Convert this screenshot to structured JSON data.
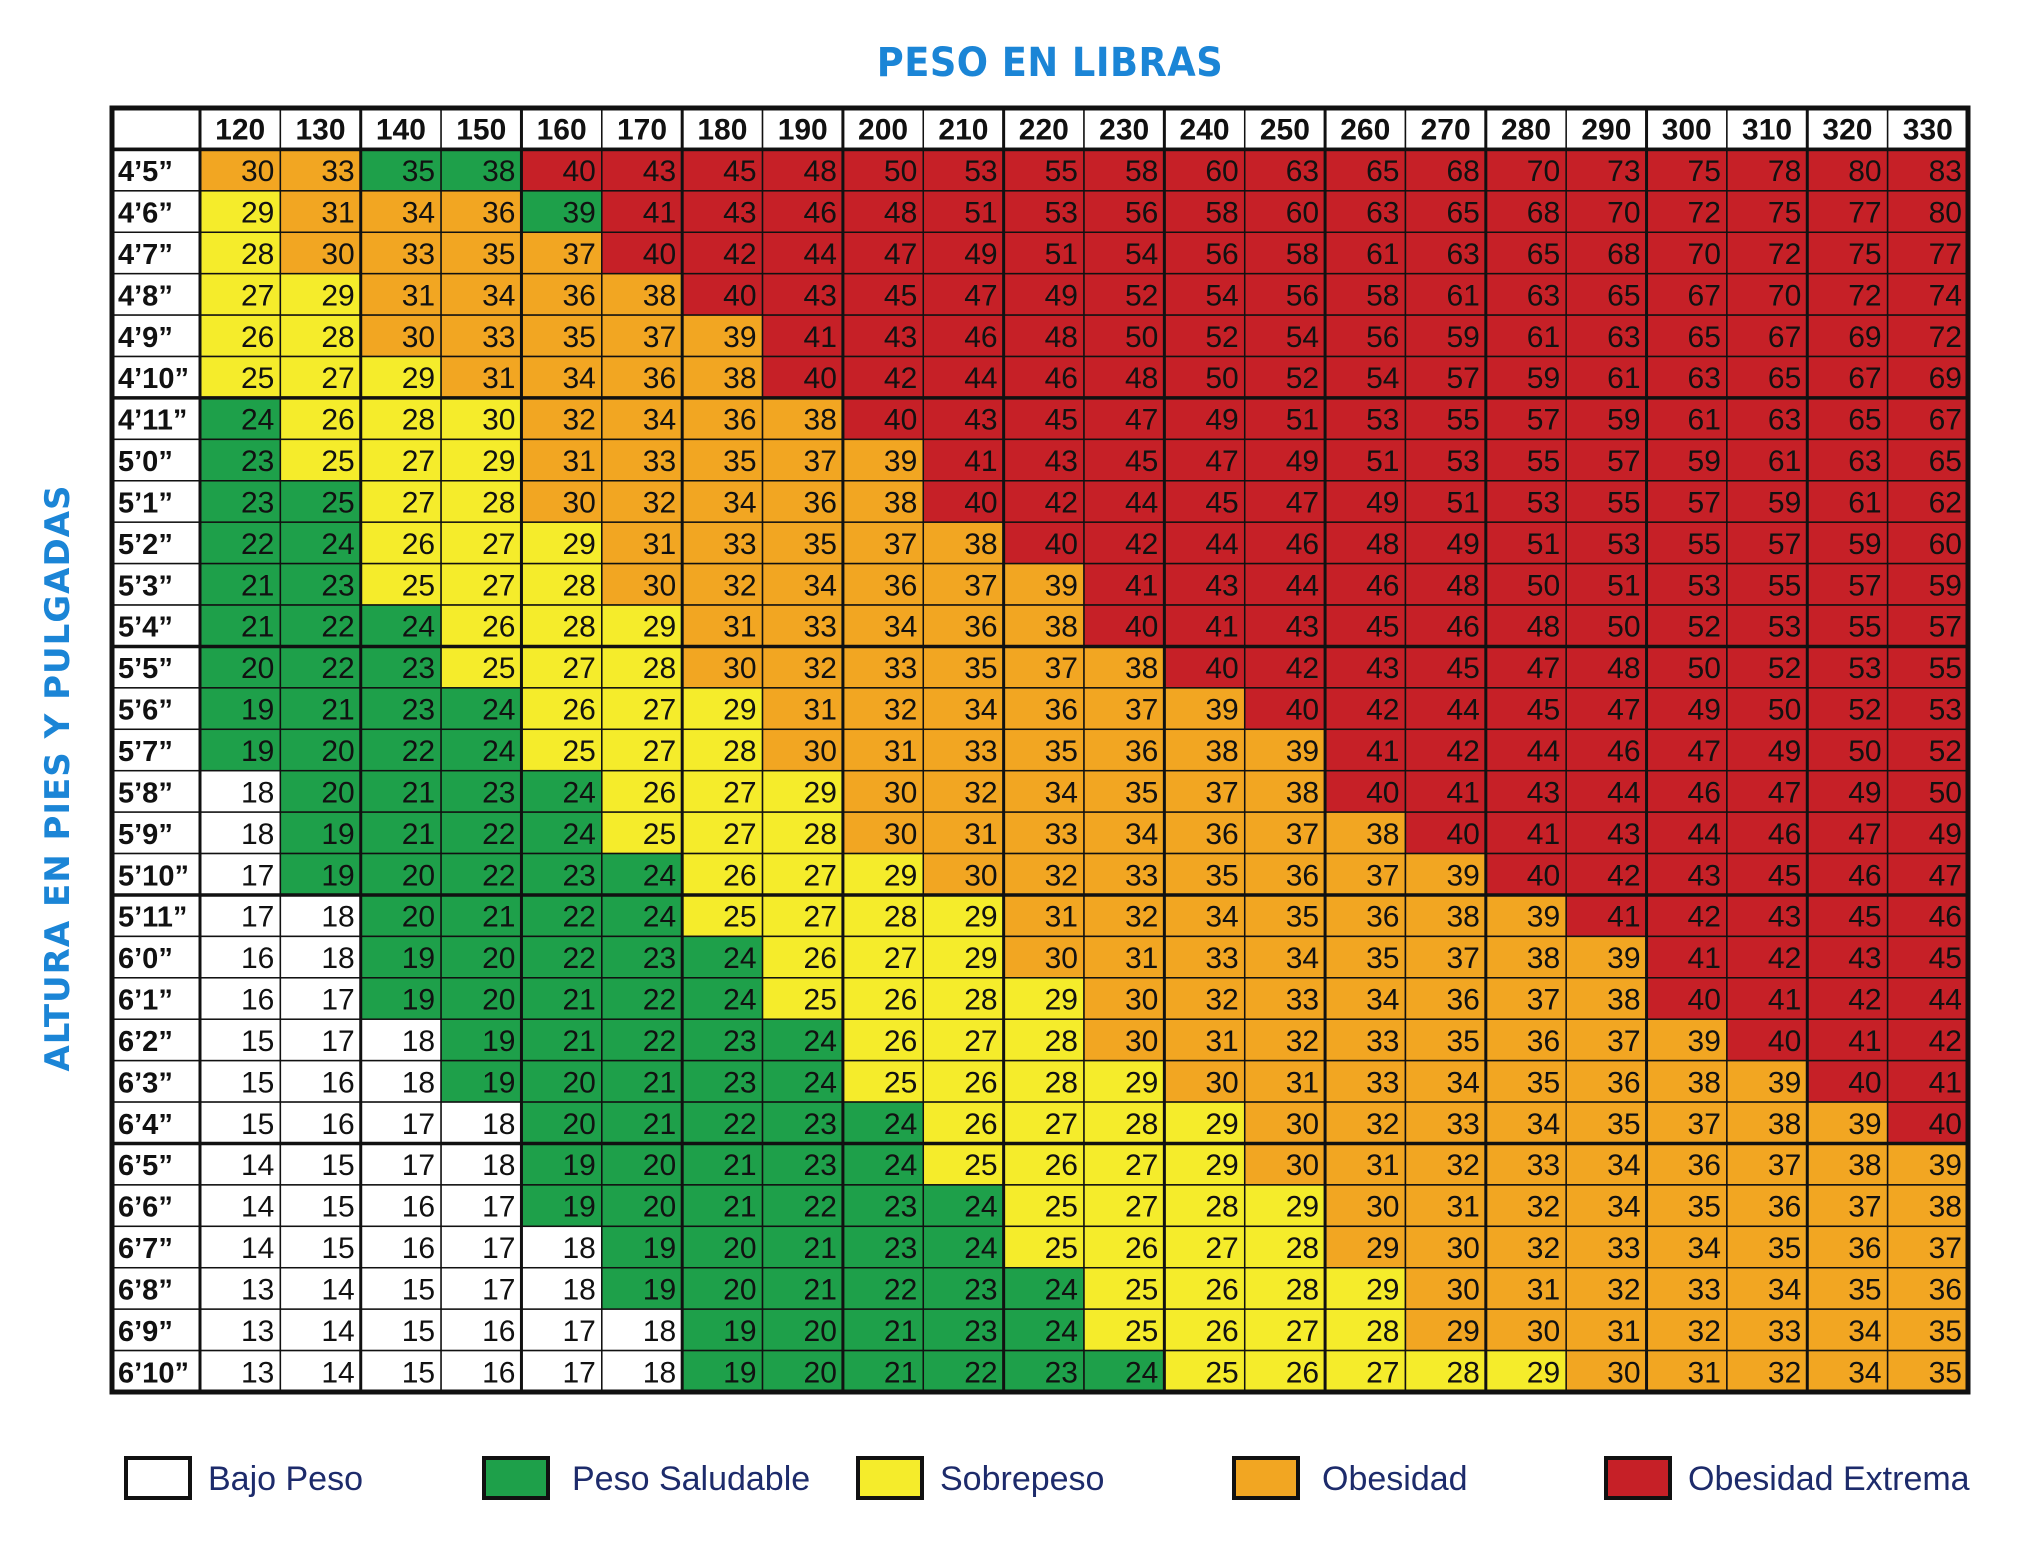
{
  "chart_data": {
    "type": "heatmap",
    "title": "PESO EN LIBRAS",
    "ylabel": "ALTURA EN PIES Y PULGADAS",
    "columns": [
      "120",
      "130",
      "140",
      "150",
      "160",
      "170",
      "180",
      "190",
      "200",
      "210",
      "220",
      "230",
      "240",
      "250",
      "260",
      "270",
      "280",
      "290",
      "300",
      "310",
      "320",
      "330"
    ],
    "rows": [
      "4’5”",
      "4’6”",
      "4’7”",
      "4’8”",
      "4’9”",
      "4’10”",
      "4’11”",
      "5’0”",
      "5’1”",
      "5’2”",
      "5’3”",
      "5’4”",
      "5’5”",
      "5’6”",
      "5’7”",
      "5’8”",
      "5’9”",
      "5’10”",
      "5’11”",
      "6’0”",
      "6’1”",
      "6’2”",
      "6’3”",
      "6’4”",
      "6’5”",
      "6’6”",
      "6’7”",
      "6’8”",
      "6’9”",
      "6’10”"
    ],
    "values": [
      [
        30,
        33,
        35,
        38,
        40,
        43,
        45,
        48,
        50,
        53,
        55,
        58,
        60,
        63,
        65,
        68,
        70,
        73,
        75,
        78,
        80,
        83
      ],
      [
        29,
        31,
        34,
        36,
        39,
        41,
        43,
        46,
        48,
        51,
        53,
        56,
        58,
        60,
        63,
        65,
        68,
        70,
        72,
        75,
        77,
        80
      ],
      [
        28,
        30,
        33,
        35,
        37,
        40,
        42,
        44,
        47,
        49,
        51,
        54,
        56,
        58,
        61,
        63,
        65,
        68,
        70,
        72,
        75,
        77
      ],
      [
        27,
        29,
        31,
        34,
        36,
        38,
        40,
        43,
        45,
        47,
        49,
        52,
        54,
        56,
        58,
        61,
        63,
        65,
        67,
        70,
        72,
        74
      ],
      [
        26,
        28,
        30,
        33,
        35,
        37,
        39,
        41,
        43,
        46,
        48,
        50,
        52,
        54,
        56,
        59,
        61,
        63,
        65,
        67,
        69,
        72
      ],
      [
        25,
        27,
        29,
        31,
        34,
        36,
        38,
        40,
        42,
        44,
        46,
        48,
        50,
        52,
        54,
        57,
        59,
        61,
        63,
        65,
        67,
        69
      ],
      [
        24,
        26,
        28,
        30,
        32,
        34,
        36,
        38,
        40,
        43,
        45,
        47,
        49,
        51,
        53,
        55,
        57,
        59,
        61,
        63,
        65,
        67
      ],
      [
        23,
        25,
        27,
        29,
        31,
        33,
        35,
        37,
        39,
        41,
        43,
        45,
        47,
        49,
        51,
        53,
        55,
        57,
        59,
        61,
        63,
        65
      ],
      [
        23,
        25,
        27,
        28,
        30,
        32,
        34,
        36,
        38,
        40,
        42,
        44,
        45,
        47,
        49,
        51,
        53,
        55,
        57,
        59,
        61,
        62
      ],
      [
        22,
        24,
        26,
        27,
        29,
        31,
        33,
        35,
        37,
        38,
        40,
        42,
        44,
        46,
        48,
        49,
        51,
        53,
        55,
        57,
        59,
        60
      ],
      [
        21,
        23,
        25,
        27,
        28,
        30,
        32,
        34,
        36,
        37,
        39,
        41,
        43,
        44,
        46,
        48,
        50,
        51,
        53,
        55,
        57,
        59
      ],
      [
        21,
        22,
        24,
        26,
        28,
        29,
        31,
        33,
        34,
        36,
        38,
        40,
        41,
        43,
        45,
        46,
        48,
        50,
        52,
        53,
        55,
        57
      ],
      [
        20,
        22,
        23,
        25,
        27,
        28,
        30,
        32,
        33,
        35,
        37,
        38,
        40,
        42,
        43,
        45,
        47,
        48,
        50,
        52,
        53,
        55
      ],
      [
        19,
        21,
        23,
        24,
        26,
        27,
        29,
        31,
        32,
        34,
        36,
        37,
        39,
        40,
        42,
        44,
        45,
        47,
        49,
        50,
        52,
        53
      ],
      [
        19,
        20,
        22,
        24,
        25,
        27,
        28,
        30,
        31,
        33,
        35,
        36,
        38,
        39,
        41,
        42,
        44,
        46,
        47,
        49,
        50,
        52
      ],
      [
        18,
        20,
        21,
        23,
        24,
        26,
        27,
        29,
        30,
        32,
        34,
        35,
        37,
        38,
        40,
        41,
        43,
        44,
        46,
        47,
        49,
        50
      ],
      [
        18,
        19,
        21,
        22,
        24,
        25,
        27,
        28,
        30,
        31,
        33,
        34,
        36,
        37,
        38,
        40,
        41,
        43,
        44,
        46,
        47,
        49
      ],
      [
        17,
        19,
        20,
        22,
        23,
        24,
        26,
        27,
        29,
        30,
        32,
        33,
        35,
        36,
        37,
        39,
        40,
        42,
        43,
        45,
        46,
        47
      ],
      [
        17,
        18,
        20,
        21,
        22,
        24,
        25,
        27,
        28,
        29,
        31,
        32,
        34,
        35,
        36,
        38,
        39,
        41,
        42,
        43,
        45,
        46
      ],
      [
        16,
        18,
        19,
        20,
        22,
        23,
        24,
        26,
        27,
        29,
        30,
        31,
        33,
        34,
        35,
        37,
        38,
        39,
        41,
        42,
        43,
        45
      ],
      [
        16,
        17,
        19,
        20,
        21,
        22,
        24,
        25,
        26,
        28,
        29,
        30,
        32,
        33,
        34,
        36,
        37,
        38,
        40,
        41,
        42,
        44
      ],
      [
        15,
        17,
        18,
        19,
        21,
        22,
        23,
        24,
        26,
        27,
        28,
        30,
        31,
        32,
        33,
        35,
        36,
        37,
        39,
        40,
        41,
        42
      ],
      [
        15,
        16,
        18,
        19,
        20,
        21,
        23,
        24,
        25,
        26,
        28,
        29,
        30,
        31,
        33,
        34,
        35,
        36,
        38,
        39,
        40,
        41
      ],
      [
        15,
        16,
        17,
        18,
        20,
        21,
        22,
        23,
        24,
        26,
        27,
        28,
        29,
        30,
        32,
        33,
        34,
        35,
        37,
        38,
        39,
        40
      ],
      [
        14,
        15,
        17,
        18,
        19,
        20,
        21,
        23,
        24,
        25,
        26,
        27,
        29,
        30,
        31,
        32,
        33,
        34,
        36,
        37,
        38,
        39
      ],
      [
        14,
        15,
        16,
        17,
        19,
        20,
        21,
        22,
        23,
        24,
        25,
        27,
        28,
        29,
        30,
        31,
        32,
        34,
        35,
        36,
        37,
        38
      ],
      [
        14,
        15,
        16,
        17,
        18,
        19,
        20,
        21,
        23,
        24,
        25,
        26,
        27,
        28,
        29,
        30,
        32,
        33,
        34,
        35,
        36,
        37
      ],
      [
        13,
        14,
        15,
        17,
        18,
        19,
        20,
        21,
        22,
        23,
        24,
        25,
        26,
        28,
        29,
        30,
        31,
        32,
        33,
        34,
        35,
        36
      ],
      [
        13,
        14,
        15,
        16,
        17,
        18,
        19,
        20,
        21,
        23,
        24,
        25,
        26,
        27,
        28,
        29,
        30,
        31,
        32,
        33,
        34,
        35
      ],
      [
        13,
        14,
        15,
        16,
        17,
        18,
        19,
        20,
        21,
        22,
        23,
        24,
        25,
        26,
        27,
        28,
        29,
        30,
        31,
        32,
        34,
        35
      ]
    ],
    "categories": [
      [
        0,
        0,
        1,
        1,
        3,
        3,
        3,
        3,
        3,
        3,
        3,
        3,
        3,
        3,
        3,
        3,
        3,
        3,
        3,
        3,
        3,
        3
      ],
      [
        2,
        0,
        0,
        0,
        1,
        3,
        3,
        3,
        3,
        3,
        3,
        3,
        3,
        3,
        3,
        3,
        3,
        3,
        3,
        3,
        3,
        3
      ],
      [
        2,
        0,
        0,
        0,
        0,
        3,
        3,
        3,
        3,
        3,
        3,
        3,
        3,
        3,
        3,
        3,
        3,
        3,
        3,
        3,
        3,
        3
      ],
      [
        2,
        2,
        0,
        0,
        0,
        0,
        3,
        3,
        3,
        3,
        3,
        3,
        3,
        3,
        3,
        3,
        3,
        3,
        3,
        3,
        3,
        3
      ],
      [
        2,
        2,
        0,
        0,
        0,
        0,
        0,
        3,
        3,
        3,
        3,
        3,
        3,
        3,
        3,
        3,
        3,
        3,
        3,
        3,
        3,
        3
      ],
      [
        2,
        2,
        2,
        0,
        0,
        0,
        0,
        3,
        3,
        3,
        3,
        3,
        3,
        3,
        3,
        3,
        3,
        3,
        3,
        3,
        3,
        3
      ],
      [
        1,
        2,
        2,
        2,
        0,
        0,
        0,
        0,
        3,
        3,
        3,
        3,
        3,
        3,
        3,
        3,
        3,
        3,
        3,
        3,
        3,
        3
      ],
      [
        1,
        2,
        2,
        2,
        0,
        0,
        0,
        0,
        0,
        3,
        3,
        3,
        3,
        3,
        3,
        3,
        3,
        3,
        3,
        3,
        3,
        3
      ],
      [
        1,
        1,
        2,
        2,
        0,
        0,
        0,
        0,
        0,
        3,
        3,
        3,
        3,
        3,
        3,
        3,
        3,
        3,
        3,
        3,
        3,
        3
      ],
      [
        1,
        1,
        2,
        2,
        2,
        0,
        0,
        0,
        0,
        0,
        3,
        3,
        3,
        3,
        3,
        3,
        3,
        3,
        3,
        3,
        3,
        3
      ],
      [
        1,
        1,
        2,
        2,
        2,
        0,
        0,
        0,
        0,
        0,
        0,
        3,
        3,
        3,
        3,
        3,
        3,
        3,
        3,
        3,
        3,
        3
      ],
      [
        1,
        1,
        1,
        2,
        2,
        2,
        0,
        0,
        0,
        0,
        0,
        3,
        3,
        3,
        3,
        3,
        3,
        3,
        3,
        3,
        3,
        3
      ],
      [
        1,
        1,
        1,
        2,
        2,
        2,
        0,
        0,
        0,
        0,
        0,
        0,
        3,
        3,
        3,
        3,
        3,
        3,
        3,
        3,
        3,
        3
      ],
      [
        1,
        1,
        1,
        1,
        2,
        2,
        2,
        0,
        0,
        0,
        0,
        0,
        0,
        3,
        3,
        3,
        3,
        3,
        3,
        3,
        3,
        3
      ],
      [
        1,
        1,
        1,
        1,
        2,
        2,
        2,
        0,
        0,
        0,
        0,
        0,
        0,
        0,
        3,
        3,
        3,
        3,
        3,
        3,
        3,
        3
      ],
      [
        -1,
        1,
        1,
        1,
        1,
        2,
        2,
        2,
        0,
        0,
        0,
        0,
        0,
        0,
        3,
        3,
        3,
        3,
        3,
        3,
        3,
        3
      ],
      [
        -1,
        1,
        1,
        1,
        1,
        2,
        2,
        2,
        0,
        0,
        0,
        0,
        0,
        0,
        0,
        3,
        3,
        3,
        3,
        3,
        3,
        3
      ],
      [
        -1,
        1,
        1,
        1,
        1,
        1,
        2,
        2,
        2,
        0,
        0,
        0,
        0,
        0,
        0,
        0,
        3,
        3,
        3,
        3,
        3,
        3
      ],
      [
        -1,
        -1,
        1,
        1,
        1,
        1,
        2,
        2,
        2,
        2,
        0,
        0,
        0,
        0,
        0,
        0,
        0,
        3,
        3,
        3,
        3,
        3
      ],
      [
        -1,
        -1,
        1,
        1,
        1,
        1,
        1,
        2,
        2,
        2,
        0,
        0,
        0,
        0,
        0,
        0,
        0,
        0,
        3,
        3,
        3,
        3
      ],
      [
        -1,
        -1,
        1,
        1,
        1,
        1,
        1,
        2,
        2,
        2,
        2,
        0,
        0,
        0,
        0,
        0,
        0,
        0,
        3,
        3,
        3,
        3
      ],
      [
        -1,
        -1,
        -1,
        1,
        1,
        1,
        1,
        1,
        2,
        2,
        2,
        0,
        0,
        0,
        0,
        0,
        0,
        0,
        0,
        3,
        3,
        3
      ],
      [
        -1,
        -1,
        -1,
        1,
        1,
        1,
        1,
        1,
        2,
        2,
        2,
        2,
        0,
        0,
        0,
        0,
        0,
        0,
        0,
        0,
        3,
        3
      ],
      [
        -1,
        -1,
        -1,
        -1,
        1,
        1,
        1,
        1,
        1,
        2,
        2,
        2,
        2,
        0,
        0,
        0,
        0,
        0,
        0,
        0,
        0,
        3
      ],
      [
        -1,
        -1,
        -1,
        -1,
        1,
        1,
        1,
        1,
        1,
        2,
        2,
        2,
        2,
        0,
        0,
        0,
        0,
        0,
        0,
        0,
        0,
        0
      ],
      [
        -1,
        -1,
        -1,
        -1,
        1,
        1,
        1,
        1,
        1,
        1,
        2,
        2,
        2,
        2,
        0,
        0,
        0,
        0,
        0,
        0,
        0,
        0
      ],
      [
        -1,
        -1,
        -1,
        -1,
        -1,
        1,
        1,
        1,
        1,
        1,
        2,
        2,
        2,
        2,
        0,
        0,
        0,
        0,
        0,
        0,
        0,
        0
      ],
      [
        -1,
        -1,
        -1,
        -1,
        -1,
        1,
        1,
        1,
        1,
        1,
        1,
        2,
        2,
        2,
        2,
        0,
        0,
        0,
        0,
        0,
        0,
        0
      ],
      [
        -1,
        -1,
        -1,
        -1,
        -1,
        -1,
        1,
        1,
        1,
        1,
        1,
        2,
        2,
        2,
        2,
        0,
        0,
        0,
        0,
        0,
        0,
        0
      ],
      [
        -1,
        -1,
        -1,
        -1,
        -1,
        -1,
        1,
        1,
        1,
        1,
        1,
        1,
        2,
        2,
        2,
        2,
        2,
        0,
        0,
        0,
        0,
        0
      ]
    ],
    "category_colors": {
      "-1": "#ffffff",
      "1": "#1ea04a",
      "2": "#f5ec2b",
      "0": "#f2a622",
      "3": "#c62027"
    },
    "legend": [
      {
        "label": "Bajo Peso",
        "color": "#ffffff"
      },
      {
        "label": "Peso Saludable",
        "color": "#1ea04a"
      },
      {
        "label": "Sobrepeso",
        "color": "#f5ec2b"
      },
      {
        "label": "Obesidad",
        "color": "#f2a622"
      },
      {
        "label": "Obesidad Extrema",
        "color": "#c62027"
      }
    ],
    "grid": true,
    "legend_position": "bottom"
  },
  "colors": {
    "title": "#1b85d6",
    "legend_text": "#1d2b6b",
    "border": "#111111"
  }
}
